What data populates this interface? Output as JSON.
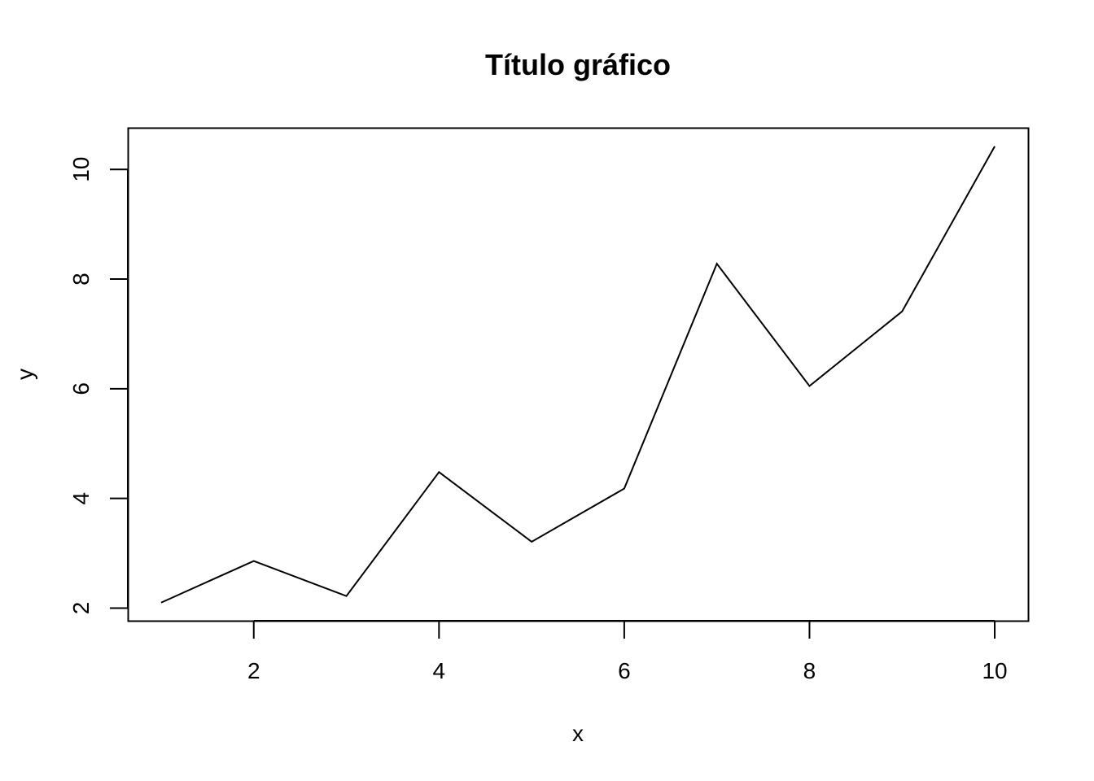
{
  "chart_data": {
    "type": "line",
    "title": "Título gráfico",
    "xlabel": "x",
    "ylabel": "y",
    "x": [
      1,
      2,
      3,
      4,
      5,
      6,
      7,
      8,
      9,
      10
    ],
    "series": [
      {
        "values": [
          2.1,
          2.86,
          2.22,
          4.48,
          3.21,
          4.18,
          8.28,
          6.05,
          7.41,
          10.42
        ]
      }
    ],
    "xlim": [
      0.64,
      10.36
    ],
    "ylim": [
      1.77,
      10.76
    ],
    "x_ticks": [
      2,
      4,
      6,
      8,
      10
    ],
    "y_ticks": [
      2,
      4,
      6,
      8,
      10
    ],
    "x_tick_labels": [
      "2",
      "4",
      "6",
      "8",
      "10"
    ],
    "y_tick_labels": [
      "2",
      "4",
      "6",
      "8",
      "10"
    ],
    "grid": false,
    "legend": "none",
    "line_color": "#000000"
  }
}
